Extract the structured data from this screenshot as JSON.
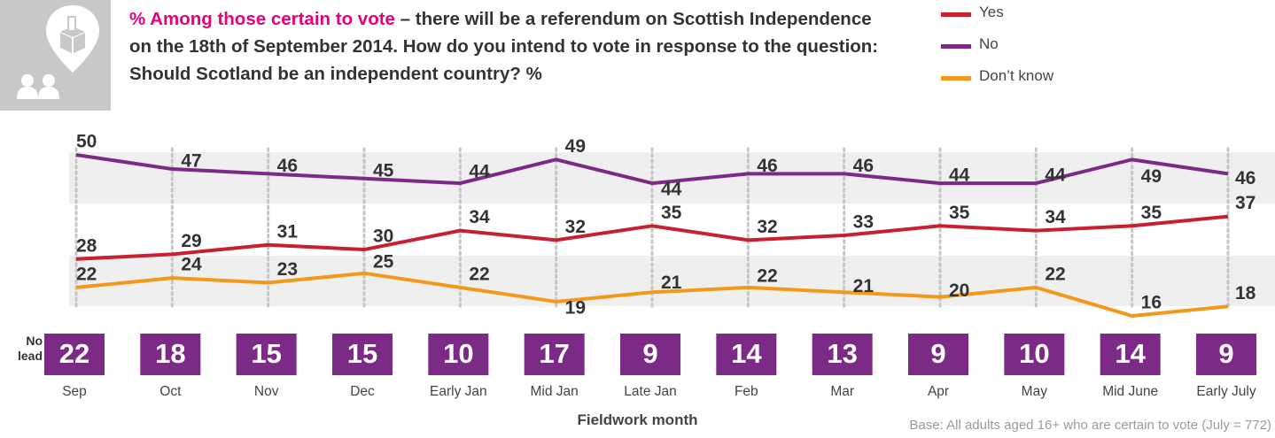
{
  "header": {
    "title_highlight": "% Among those certain to vote",
    "title_rest": " – there will be a referendum on Scottish Independence on the 18th of September 2014. How do you intend to vote in response to the question: Should Scotland be an independent country? %"
  },
  "icon": "ballot-box-people-icon",
  "colors": {
    "yes": "#c8202f",
    "no": "#7b2a86",
    "dont_know": "#f4981d",
    "lead_box": "#7b2a86",
    "band": "#efefef"
  },
  "chart_data": {
    "type": "line",
    "categories": [
      "Sep",
      "Oct",
      "Nov",
      "Dec",
      "Early Jan",
      "Mid Jan",
      "Late Jan",
      "Feb",
      "Mar",
      "Apr",
      "May",
      "Mid June",
      "Early July"
    ],
    "series": [
      {
        "name": "Yes",
        "values": [
          28,
          29,
          31,
          30,
          34,
          32,
          35,
          32,
          33,
          35,
          34,
          35,
          37
        ]
      },
      {
        "name": "No",
        "values": [
          50,
          47,
          46,
          45,
          44,
          49,
          44,
          46,
          46,
          44,
          44,
          49,
          46
        ]
      },
      {
        "name": "Don’t know",
        "values": [
          22,
          24,
          23,
          25,
          22,
          19,
          21,
          22,
          21,
          20,
          22,
          16,
          18
        ]
      }
    ],
    "lead_label": "No lead",
    "lead": [
      22,
      18,
      15,
      15,
      10,
      17,
      9,
      14,
      13,
      9,
      10,
      14,
      9
    ],
    "xlabel": "Fieldwork month",
    "legend_position": "top-right"
  },
  "footer": {
    "base": "Base: All adults aged 16+ who are certain to vote (July = 772)"
  }
}
